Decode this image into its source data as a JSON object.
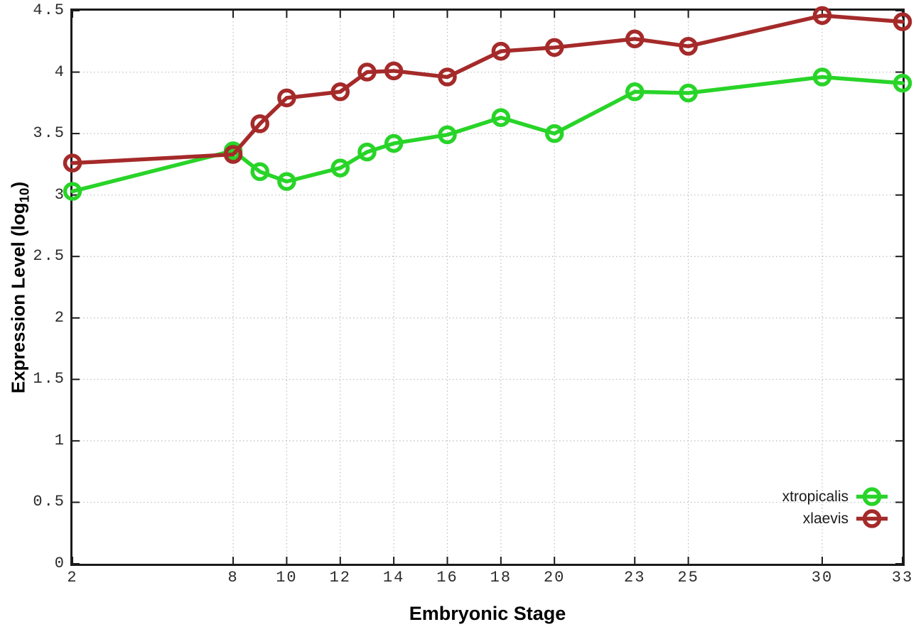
{
  "figure": {
    "background": "#ffffff",
    "axis_color": "#1a1a1a",
    "grid_color": "#bdbdbd",
    "tick_label_color": "#2b2b2b",
    "xlabel": "Embryonic Stage",
    "ylabel": {
      "main": "Expression Level (log",
      "sub": "10",
      "close": ")"
    }
  },
  "chart_data": {
    "type": "line",
    "title": "",
    "xlabel": "Embryonic Stage",
    "ylabel": "Expression Level (log10)",
    "x": [
      2,
      8,
      9,
      10,
      12,
      13,
      14,
      16,
      18,
      20,
      23,
      25,
      30,
      33
    ],
    "series": [
      {
        "name": "xtropicalis",
        "color": "#28d428",
        "marker": "open-circle",
        "values": [
          3.03,
          3.36,
          3.19,
          3.11,
          3.22,
          3.35,
          3.42,
          3.49,
          3.63,
          3.5,
          3.84,
          3.83,
          3.96,
          3.91
        ]
      },
      {
        "name": "xlaevis",
        "color": "#a52a2a",
        "marker": "open-circle",
        "values": [
          3.26,
          3.33,
          3.58,
          3.79,
          3.84,
          4.0,
          4.01,
          3.96,
          4.17,
          4.2,
          4.27,
          4.21,
          4.46,
          4.41
        ]
      }
    ],
    "xticks": [
      2,
      8,
      10,
      12,
      14,
      16,
      18,
      20,
      23,
      25,
      30,
      33
    ],
    "yticks": [
      0,
      0.5,
      1,
      1.5,
      2,
      2.5,
      3,
      3.5,
      4,
      4.5
    ],
    "xlim": [
      2,
      33
    ],
    "ylim": [
      0,
      4.5
    ],
    "grid": true,
    "legend_position": "inside-bottom-right",
    "line_width": 5.5,
    "marker_radius": 10.5
  }
}
